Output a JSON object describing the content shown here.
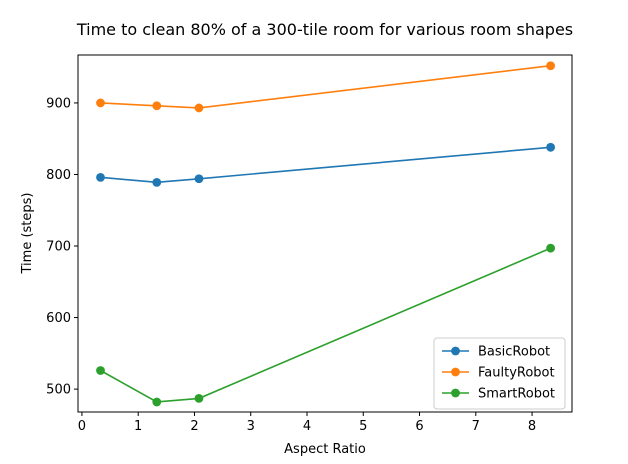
{
  "chart_data": {
    "type": "line",
    "title": "Time to clean 80% of a 300-tile room for various room shapes",
    "xlabel": "Aspect Ratio",
    "ylabel": "Time (steps)",
    "xlim": [
      -0.07,
      8.71
    ],
    "ylim": [
      468,
      967
    ],
    "xticks": [
      0,
      1,
      2,
      3,
      4,
      5,
      6,
      7,
      8
    ],
    "yticks": [
      500,
      600,
      700,
      800,
      900
    ],
    "grid": false,
    "legend_position": "lower right",
    "x": [
      0.33,
      1.33,
      2.08,
      8.33
    ],
    "series": [
      {
        "name": "BasicRobot",
        "color": "#1f77b4",
        "values": [
          796,
          789,
          794,
          838
        ]
      },
      {
        "name": "FaultyRobot",
        "color": "#ff7f0e",
        "values": [
          900,
          896,
          893,
          952
        ]
      },
      {
        "name": "SmartRobot",
        "color": "#2ca02c",
        "values": [
          526,
          482,
          487,
          697
        ]
      }
    ]
  }
}
